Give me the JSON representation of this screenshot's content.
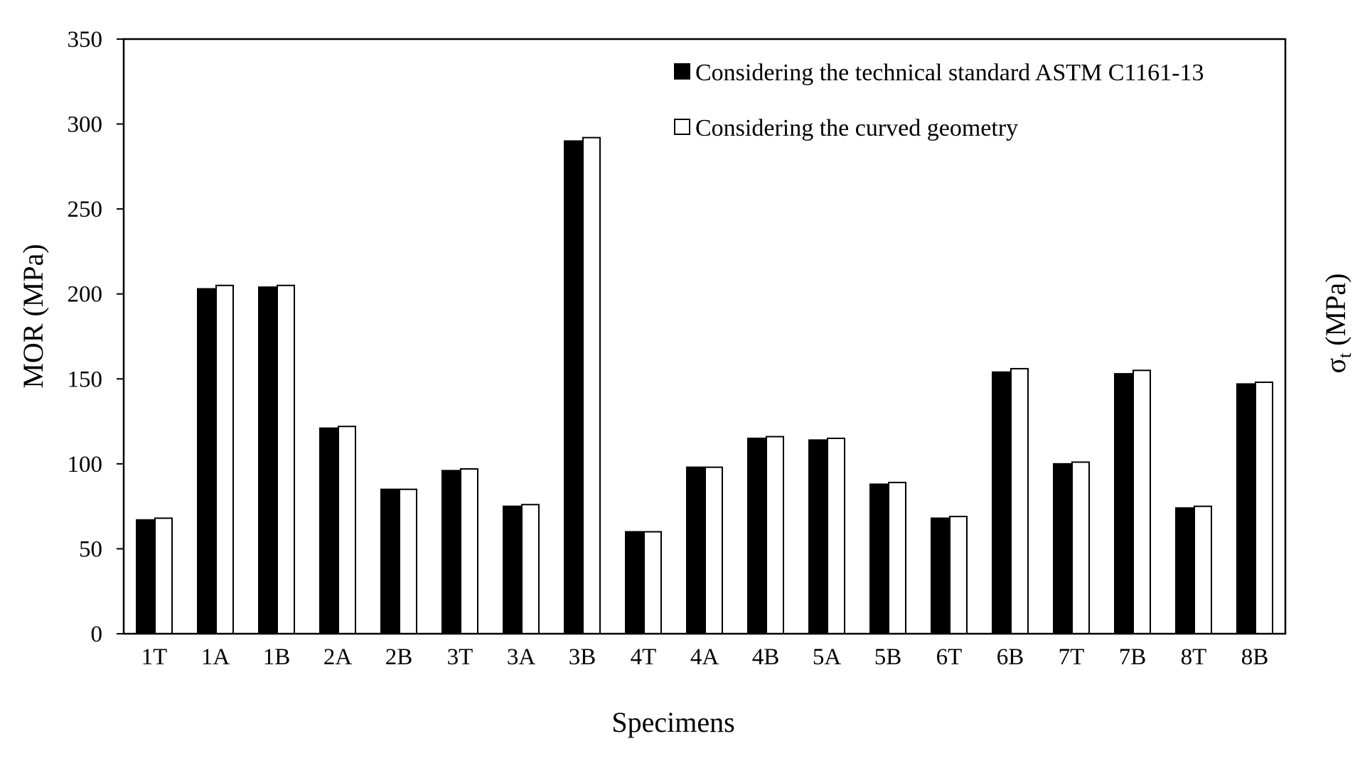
{
  "chart_data": {
    "type": "bar",
    "title": "",
    "xlabel": "Specimens",
    "ylabel": "MOR (MPa)",
    "ylabel_right_main": "σ",
    "ylabel_right_sub": "t",
    "ylabel_right_unit": "(MPa)",
    "ylim": [
      0,
      350
    ],
    "yticks": [
      0,
      50,
      100,
      150,
      200,
      250,
      300,
      350
    ],
    "grid": false,
    "legend_position": "top-right",
    "categories": [
      "1T",
      "1A",
      "1B",
      "2A",
      "2B",
      "3T",
      "3A",
      "3B",
      "4T",
      "4A",
      "4B",
      "5A",
      "5B",
      "6T",
      "6B",
      "7T",
      "7B",
      "8T",
      "8B"
    ],
    "series": [
      {
        "name": "Considering the technical standard ASTM C1161-13",
        "fill": "#000000",
        "values": [
          67,
          203,
          204,
          121,
          85,
          96,
          75,
          290,
          60,
          98,
          115,
          114,
          88,
          68,
          154,
          100,
          153,
          74,
          147
        ]
      },
      {
        "name": "Considering the curved geometry",
        "fill": "#ffffff",
        "values": [
          68,
          205,
          205,
          122,
          85,
          97,
          76,
          292,
          60,
          98,
          116,
          115,
          89,
          69,
          156,
          101,
          155,
          75,
          148
        ]
      }
    ]
  }
}
